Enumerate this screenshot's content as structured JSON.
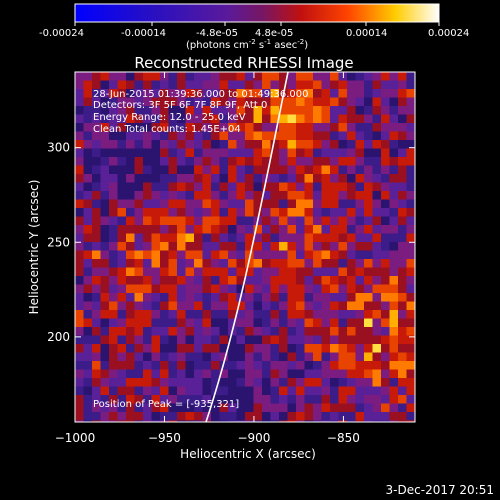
{
  "colorbar": {
    "tick_labels": [
      "-0.00024",
      "-0.00014",
      "-4.8e-05",
      "4.8e-05",
      "0.00014",
      "0.00024"
    ],
    "units_main": "(photons cm",
    "units_sup1": "-2",
    "units_mid1": " s",
    "units_sup2": "-1",
    "units_mid2": " asec",
    "units_sup3": "-2",
    "units_end": ")",
    "range": [
      -0.00024,
      0.00024
    ]
  },
  "chart_data": {
    "type": "heatmap",
    "title": "Reconstructed RHESSI Image",
    "xlabel": "Heliocentric X (arcsec)",
    "ylabel": "Heliocentric Y (arcsec)",
    "xlim": [
      -1000,
      -810
    ],
    "ylim": [
      155,
      340
    ],
    "x_ticks": [
      -1000,
      -950,
      -900,
      -850
    ],
    "x_tick_labels": [
      "−1000",
      "−950",
      "−900",
      "−850"
    ],
    "y_ticks": [
      200,
      250,
      300
    ],
    "y_tick_labels": [
      "200",
      "250",
      "300"
    ],
    "colormap": "blue-purple-red-yellow-white",
    "limb_color": "#ffffff",
    "info_lines": [
      "28-Jun-2015 01:39:36.000 to 01:49:36.000",
      "Detectors: 3F 5F 6F 7F 8F 9F, Att 0",
      "Energy Range: 12.0 - 25.0 keV",
      "Clean     Total counts: 1.45E+04"
    ],
    "peak_label": "Position of Peak = [-935,321]",
    "peak_position": [
      -935,
      321
    ]
  },
  "timestamp": "3-Dec-2017 20:51"
}
